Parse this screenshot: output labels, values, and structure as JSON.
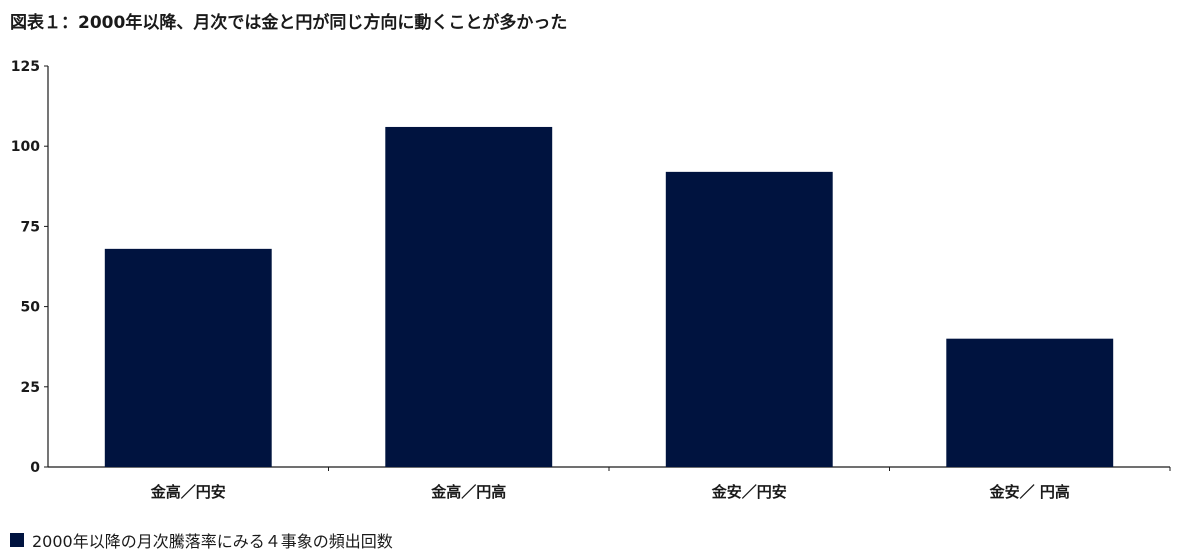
{
  "chart_data": {
    "type": "bar",
    "title": "図表１：2000年以降、月次では金と円が同じ方向に動くことが多かった",
    "categories": [
      "金高／円安",
      "金高／円高",
      "金安／円安",
      "金安／ 円高"
    ],
    "series": [
      {
        "name": "2000年以降の月次騰落率にみる４事象の頻出回数",
        "values": [
          68,
          106,
          92,
          40
        ],
        "color": "#00133f"
      }
    ],
    "yticks": [
      "0",
      "25",
      "50",
      "75",
      "100",
      "125"
    ],
    "ylim": [
      0,
      125
    ],
    "grid": false,
    "legend_position": "bottom-left"
  }
}
